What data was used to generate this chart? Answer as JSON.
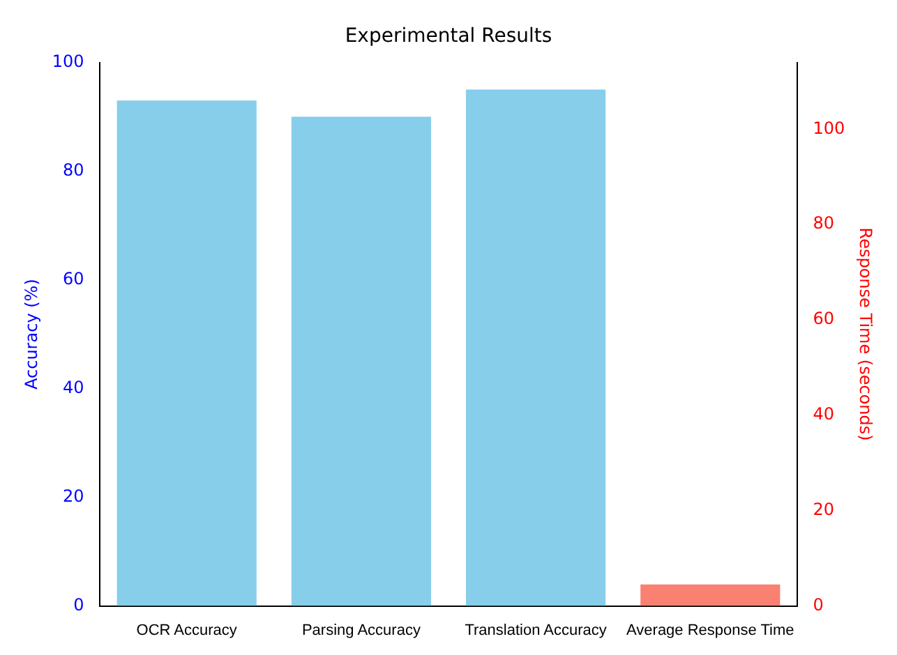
{
  "chart_data": {
    "type": "bar",
    "title": "Experimental Results",
    "ylabel": "Accuracy (%)",
    "y2label": "Response Time (seconds)",
    "categories": [
      "OCR Accuracy",
      "Parsing Accuracy",
      "Translation Accuracy",
      "Average Response Time"
    ],
    "series": [
      {
        "color": "#87ceeb",
        "values": [
          93,
          90,
          95,
          null
        ]
      },
      {
        "color": "#fa8072",
        "values": [
          null,
          null,
          null,
          4.5
        ],
        "axis": "y2"
      }
    ],
    "ylim": [
      0,
      100
    ],
    "yticks": [
      0,
      20,
      40,
      60,
      80,
      100
    ],
    "y2lim": [
      0,
      114
    ],
    "y2ticks": [
      0,
      20,
      40,
      60,
      80,
      100
    ],
    "grid": false,
    "legend": false
  }
}
